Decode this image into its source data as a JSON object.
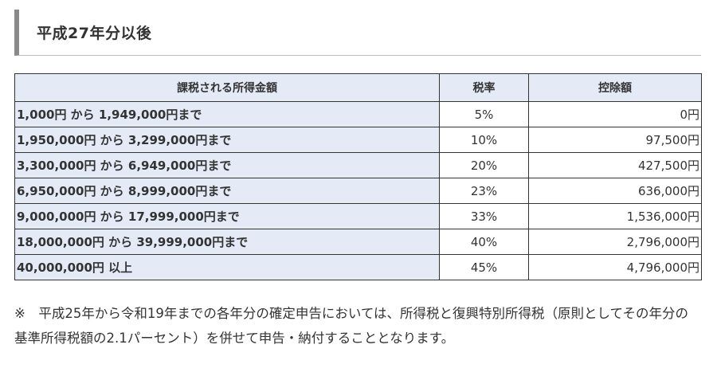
{
  "heading": {
    "title": "平成27年分以後"
  },
  "table": {
    "headers": [
      "課税される所得金額",
      "税率",
      "控除額"
    ],
    "rows": [
      {
        "income": "1,000円 から 1,949,000円まで",
        "rate": "5%",
        "deduction": "0円"
      },
      {
        "income": "1,950,000円 から 3,299,000円まで",
        "rate": "10%",
        "deduction": "97,500円"
      },
      {
        "income": "3,300,000円 から 6,949,000円まで",
        "rate": "20%",
        "deduction": "427,500円"
      },
      {
        "income": "6,950,000円 から 8,999,000円まで",
        "rate": "23%",
        "deduction": "636,000円"
      },
      {
        "income": "9,000,000円 から 17,999,000円まで",
        "rate": "33%",
        "deduction": "1,536,000円"
      },
      {
        "income": "18,000,000円 から 39,999,000円まで",
        "rate": "40%",
        "deduction": "2,796,000円"
      },
      {
        "income": "40,000,000円 以上",
        "rate": "45%",
        "deduction": "4,796,000円"
      }
    ]
  },
  "note": {
    "text": "※　平成25年から令和19年までの各年分の確定申告においては、所得税と復興特別所得税（原則としてその年分の基準所得税額の2.1パーセント）を併せて申告・納付することとなります。"
  },
  "colors": {
    "header_bg": "#e4ebf7",
    "heading_bar": "#8a8a8a",
    "border": "#333333",
    "text": "#333333"
  }
}
